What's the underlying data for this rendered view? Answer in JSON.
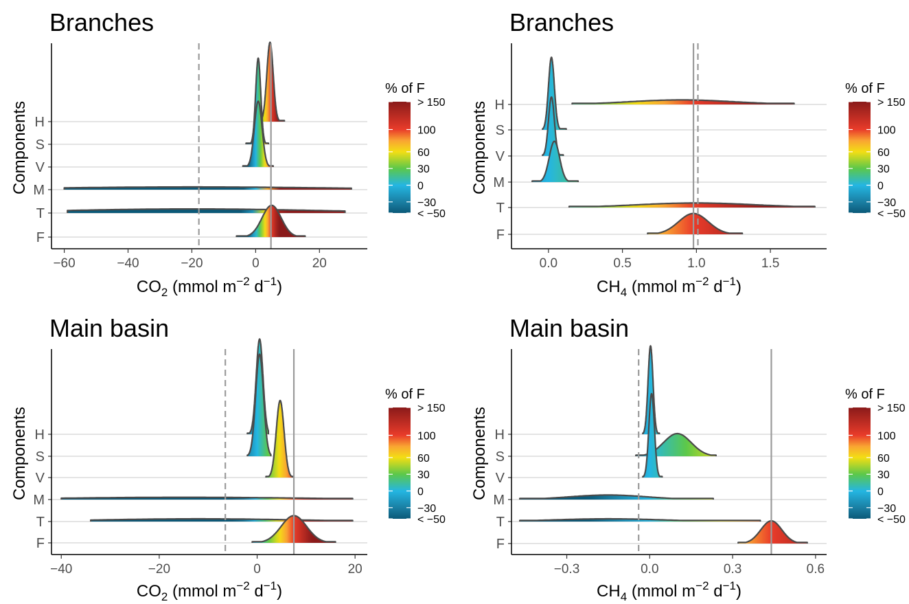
{
  "chart_data": [
    {
      "type": "ridgeline",
      "title": "Branches",
      "xlabel": {
        "prefix": "CO",
        "sub": "2",
        "mid": " (mmol m",
        "sup": "−2",
        "mid2": " d",
        "sup2": "−1",
        "suffix": ")"
      },
      "ylabel": "Components",
      "categories": [
        "F",
        "T",
        "M",
        "V",
        "S",
        "H"
      ],
      "xlim": [
        -64,
        35
      ],
      "xticks": [
        -60,
        -40,
        -20,
        0,
        20
      ],
      "xtick_labels": [
        "−60",
        "−40",
        "−20",
        "0",
        "20"
      ],
      "reference_lines": {
        "solid": 4.8,
        "dashed": -17.8
      },
      "series": [
        {
          "name": "F",
          "mean": 5,
          "sd": 3,
          "min": -6,
          "max": 15.5,
          "peak": 1.4
        },
        {
          "name": "T",
          "mean": -20,
          "sd": 40,
          "min": -59,
          "max": 28,
          "peak": 0.18
        },
        {
          "name": "M",
          "mean": -20,
          "sd": 45,
          "min": -60,
          "max": 30,
          "peak": 0.12
        },
        {
          "name": "V",
          "mean": 0.8,
          "sd": 1.2,
          "min": -4,
          "max": 5.5,
          "peak": 2.9
        },
        {
          "name": "S",
          "mean": 0.8,
          "sd": 0.8,
          "min": -3,
          "max": 4,
          "peak": 3.8
        },
        {
          "name": "H",
          "mean": 4.5,
          "sd": 1,
          "min": 1,
          "max": 9,
          "peak": 3.5
        }
      ]
    },
    {
      "type": "ridgeline",
      "title": "Branches",
      "xlabel": {
        "prefix": "CH",
        "sub": "4",
        "mid": " (mmol m",
        "sup": "−2",
        "mid2": " d",
        "sup2": "−1",
        "suffix": ")"
      },
      "ylabel": "Components",
      "categories": [
        "F",
        "T",
        "M",
        "V",
        "S",
        "H"
      ],
      "xlim": [
        -0.25,
        1.88
      ],
      "xticks": [
        0,
        0.5,
        1,
        1.5
      ],
      "xtick_labels": [
        "0.0",
        "0.5",
        "1.0",
        "1.5"
      ],
      "reference_lines": {
        "solid": 0.98,
        "dashed": 1.01
      },
      "series": [
        {
          "name": "F",
          "mean": 0.98,
          "sd": 0.1,
          "min": 0.67,
          "max": 1.31,
          "peak": 0.92
        },
        {
          "name": "T",
          "mean": 1.0,
          "sd": 0.4,
          "min": 0.14,
          "max": 1.8,
          "peak": 0.2
        },
        {
          "name": "M",
          "mean": 0.04,
          "sd": 0.035,
          "min": -0.11,
          "max": 0.2,
          "peak": 1.8
        },
        {
          "name": "V",
          "mean": 0.02,
          "sd": 0.02,
          "min": -0.04,
          "max": 0.1,
          "peak": 2.6
        },
        {
          "name": "S",
          "mean": 0.02,
          "sd": 0.02,
          "min": -0.04,
          "max": 0.12,
          "peak": 3.2
        },
        {
          "name": "H",
          "mean": 0.9,
          "sd": 0.35,
          "min": 0.16,
          "max": 1.66,
          "peak": 0.2
        }
      ]
    },
    {
      "type": "ridgeline",
      "title": "Main basin",
      "xlabel": {
        "prefix": "CO",
        "sub": "2",
        "mid": " (mmol m",
        "sup": "−2",
        "mid2": " d",
        "sup2": "−1",
        "suffix": ")"
      },
      "ylabel": "Components",
      "categories": [
        "F",
        "T",
        "M",
        "V",
        "S",
        "H"
      ],
      "xlim": [
        -42,
        22.5
      ],
      "xticks": [
        -40,
        -20,
        0,
        20
      ],
      "xtick_labels": [
        "−40",
        "−20",
        "0",
        "20"
      ],
      "reference_lines": {
        "solid": 7.5,
        "dashed": -6.5
      },
      "series": [
        {
          "name": "F",
          "mean": 7.5,
          "sd": 2.6,
          "min": -1,
          "max": 16,
          "peak": 1.2
        },
        {
          "name": "T",
          "mean": -12,
          "sd": 20,
          "min": -34,
          "max": 19.5,
          "peak": 0.12
        },
        {
          "name": "M",
          "mean": -15,
          "sd": 25,
          "min": -40,
          "max": 19.5,
          "peak": 0.1
        },
        {
          "name": "V",
          "mean": 4.7,
          "sd": 0.8,
          "min": 1.8,
          "max": 7.3,
          "peak": 3.4
        },
        {
          "name": "S",
          "mean": 0.5,
          "sd": 0.8,
          "min": -2,
          "max": 2.8,
          "peak": 4.5
        },
        {
          "name": "H",
          "mean": 0.5,
          "sd": 0.7,
          "min": -2,
          "max": 2.3,
          "peak": 4.2
        }
      ]
    },
    {
      "type": "ridgeline",
      "title": "Main basin",
      "xlabel": {
        "prefix": "CH",
        "sub": "4",
        "mid": " (mmol m",
        "sup": "−2",
        "mid2": " d",
        "sup2": "−1",
        "suffix": ")"
      },
      "ylabel": "Components",
      "categories": [
        "F",
        "T",
        "M",
        "V",
        "S",
        "H"
      ],
      "xlim": [
        -0.5,
        0.64
      ],
      "xticks": [
        -0.3,
        0,
        0.3,
        0.6
      ],
      "xtick_labels": [
        "−0.3",
        "0.0",
        "0.3",
        "0.6"
      ],
      "reference_lines": {
        "solid": 0.44,
        "dashed": -0.04
      },
      "series": [
        {
          "name": "F",
          "mean": 0.44,
          "sd": 0.038,
          "min": 0.32,
          "max": 0.57,
          "peak": 1.0
        },
        {
          "name": "T",
          "mean": -0.15,
          "sd": 0.2,
          "min": -0.47,
          "max": 0.4,
          "peak": 0.12
        },
        {
          "name": "M",
          "mean": -0.15,
          "sd": 0.14,
          "min": -0.47,
          "max": 0.23,
          "peak": 0.2
        },
        {
          "name": "V",
          "mean": 0.007,
          "sd": 0.01,
          "min": -0.025,
          "max": 0.045,
          "peak": 3.7
        },
        {
          "name": "S",
          "mean": 0.1,
          "sd": 0.05,
          "min": -0.05,
          "max": 0.24,
          "peak": 1.0
        },
        {
          "name": "H",
          "mean": 0.003,
          "sd": 0.009,
          "min": -0.025,
          "max": 0.035,
          "peak": 3.9
        }
      ]
    }
  ],
  "legend": {
    "title": "% of F",
    "labels": [
      "> 150",
      "100",
      "60",
      "30",
      "0",
      "−30",
      "< −50"
    ],
    "values": [
      150,
      100,
      60,
      30,
      0,
      -30,
      -50
    ],
    "colors": {
      "-50": "#0b5978",
      "-30": "#1a7fa3",
      "0": "#24b6e2",
      "30": "#5cc84a",
      "60": "#f3de14",
      "80": "#f9a532",
      "100": "#e93c2a",
      "150": "#8a1a1a"
    }
  }
}
